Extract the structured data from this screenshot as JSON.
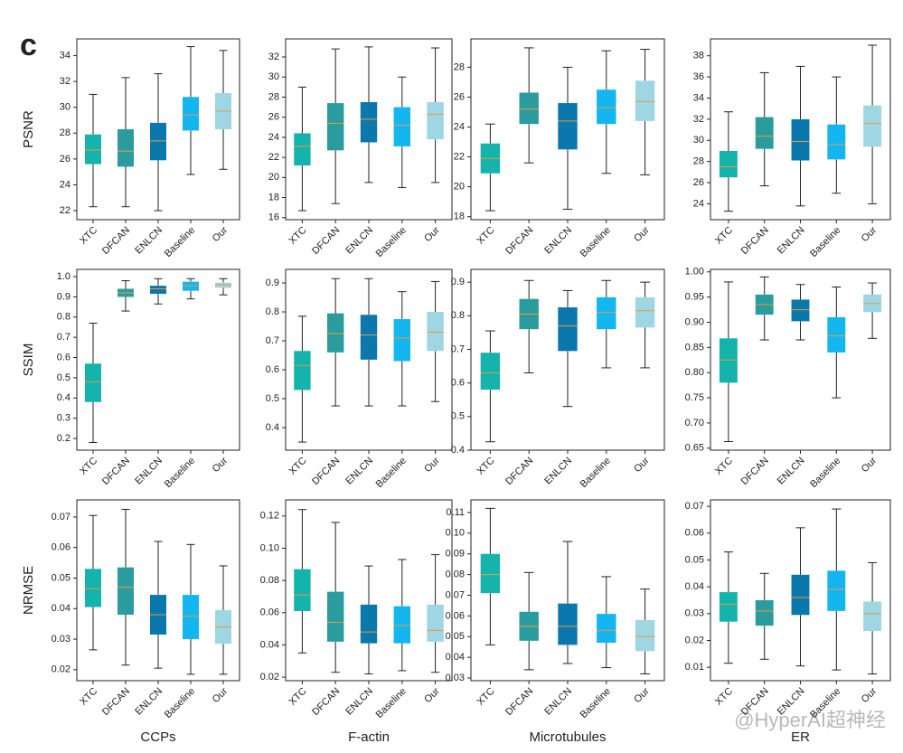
{
  "panel_label": "c",
  "watermark": "@HyperAI超神经",
  "chart_data": [
    {
      "type": "box",
      "ylabel": "PSNR",
      "categories": [
        "XTC",
        "DFCAN",
        "ENLCN",
        "Baseline",
        "Our"
      ],
      "colors": [
        "#14b3ab",
        "#2a9c9e",
        "#0a77ad",
        "#14b6f0",
        "#9fd6e4"
      ],
      "median_color": "#e89a3c",
      "min": [
        22.3,
        22.3,
        22.0,
        24.8,
        25.2
      ],
      "q1": [
        25.6,
        25.4,
        25.9,
        28.2,
        28.3
      ],
      "median": [
        26.7,
        26.6,
        27.4,
        29.4,
        29.7
      ],
      "q3": [
        27.9,
        28.3,
        28.8,
        30.8,
        31.1
      ],
      "max": [
        31.0,
        32.3,
        32.6,
        34.7,
        34.4
      ],
      "ylim": [
        21.3,
        35.3
      ],
      "yticks": [
        22,
        24,
        26,
        28,
        30,
        32,
        34
      ]
    },
    {
      "type": "box",
      "categories": [
        "XTC",
        "DFCAN",
        "ENLCN",
        "Baseline",
        "Our"
      ],
      "colors": [
        "#14b3ab",
        "#2a9c9e",
        "#0a77ad",
        "#14b6f0",
        "#9fd6e4"
      ],
      "median_color": "#e89a3c",
      "min": [
        16.7,
        17.4,
        19.5,
        19.0,
        19.5
      ],
      "q1": [
        21.2,
        22.7,
        23.5,
        23.1,
        23.8
      ],
      "median": [
        23.1,
        25.4,
        25.8,
        25.2,
        26.3
      ],
      "q3": [
        24.4,
        27.4,
        27.5,
        27.0,
        27.5
      ],
      "max": [
        29.0,
        32.8,
        33.0,
        30.0,
        32.9
      ],
      "ylim": [
        15.8,
        33.8
      ],
      "yticks": [
        16,
        18,
        20,
        22,
        24,
        26,
        28,
        30,
        32
      ]
    },
    {
      "type": "box",
      "categories": [
        "XTC",
        "DFCAN",
        "ENLCN",
        "Baseline",
        "Our"
      ],
      "colors": [
        "#14b3ab",
        "#2a9c9e",
        "#0a77ad",
        "#14b6f0",
        "#9fd6e4"
      ],
      "median_color": "#e89a3c",
      "min": [
        18.4,
        21.6,
        18.5,
        20.9,
        20.8
      ],
      "q1": [
        20.9,
        24.2,
        22.5,
        24.2,
        24.4
      ],
      "median": [
        21.9,
        25.2,
        24.4,
        25.3,
        25.7
      ],
      "q3": [
        22.9,
        26.3,
        25.6,
        26.5,
        27.1
      ],
      "max": [
        24.2,
        29.3,
        28.0,
        29.1,
        29.2
      ],
      "ylim": [
        17.8,
        29.9
      ],
      "yticks": [
        18,
        20,
        22,
        24,
        26,
        28
      ]
    },
    {
      "type": "box",
      "categories": [
        "XTC",
        "DFCAN",
        "ENLCN",
        "Baseline",
        "Our"
      ],
      "colors": [
        "#14b3ab",
        "#2a9c9e",
        "#0a77ad",
        "#14b6f0",
        "#9fd6e4"
      ],
      "median_color": "#e89a3c",
      "min": [
        23.3,
        25.7,
        23.8,
        25.0,
        24.0
      ],
      "q1": [
        26.5,
        29.2,
        28.1,
        28.2,
        29.4
      ],
      "median": [
        27.5,
        30.4,
        29.9,
        29.6,
        31.6
      ],
      "q3": [
        29.0,
        32.2,
        32.0,
        31.5,
        33.3
      ],
      "max": [
        32.7,
        36.4,
        37.0,
        36.0,
        39.0
      ],
      "ylim": [
        22.5,
        39.6
      ],
      "yticks": [
        24,
        26,
        28,
        30,
        32,
        34,
        36,
        38
      ]
    },
    {
      "type": "box",
      "ylabel": "SSIM",
      "categories": [
        "XTC",
        "DFCAN",
        "ENLCN",
        "Baseline",
        "Our"
      ],
      "colors": [
        "#14b3ab",
        "#2a9c9e",
        "#0a77ad",
        "#14b6f0",
        "#9fd6e4"
      ],
      "median_color": "#e89a3c",
      "min": [
        0.18,
        0.83,
        0.865,
        0.89,
        0.91
      ],
      "q1": [
        0.38,
        0.9,
        0.915,
        0.93,
        0.945
      ],
      "median": [
        0.48,
        0.92,
        0.94,
        0.955,
        0.96
      ],
      "q3": [
        0.57,
        0.94,
        0.955,
        0.975,
        0.97
      ],
      "max": [
        0.77,
        0.98,
        0.99,
        0.99,
        0.99
      ],
      "ylim": [
        0.142,
        1.036
      ],
      "yticks": [
        0.2,
        0.3,
        0.4,
        0.5,
        0.6,
        0.7,
        0.8,
        0.9,
        {
          "value": 1.0,
          "label": "1.0"
        }
      ]
    },
    {
      "type": "box",
      "categories": [
        "XTC",
        "DFCAN",
        "ENLCN",
        "Baseline",
        "Our"
      ],
      "colors": [
        "#14b3ab",
        "#2a9c9e",
        "#0a77ad",
        "#14b6f0",
        "#9fd6e4"
      ],
      "median_color": "#e89a3c",
      "min": [
        0.35,
        0.475,
        0.475,
        0.475,
        0.49
      ],
      "q1": [
        0.53,
        0.66,
        0.635,
        0.63,
        0.665
      ],
      "median": [
        0.615,
        0.725,
        0.72,
        0.71,
        0.73
      ],
      "q3": [
        0.665,
        0.795,
        0.79,
        0.775,
        0.8
      ],
      "max": [
        0.785,
        0.915,
        0.915,
        0.87,
        0.905
      ],
      "ylim": [
        0.322,
        0.947
      ],
      "yticks": [
        0.4,
        0.5,
        0.6,
        0.7,
        0.8,
        0.9
      ]
    },
    {
      "type": "box",
      "categories": [
        "XTC",
        "DFCAN",
        "ENLCN",
        "Baseline",
        "Our"
      ],
      "colors": [
        "#14b3ab",
        "#2a9c9e",
        "#0a77ad",
        "#14b6f0",
        "#9fd6e4"
      ],
      "median_color": "#e89a3c",
      "min": [
        0.425,
        0.63,
        0.53,
        0.645,
        0.645
      ],
      "q1": [
        0.58,
        0.76,
        0.695,
        0.76,
        0.765
      ],
      "median": [
        0.63,
        0.805,
        0.77,
        0.81,
        0.815
      ],
      "q3": [
        0.69,
        0.85,
        0.825,
        0.855,
        0.855
      ],
      "max": [
        0.755,
        0.905,
        0.875,
        0.905,
        0.9
      ],
      "ylim": [
        0.4,
        0.938
      ],
      "yticks": [
        0.4,
        0.5,
        0.6,
        0.7,
        0.8,
        0.9
      ]
    },
    {
      "type": "box",
      "categories": [
        "XTC",
        "DFCAN",
        "ENLCN",
        "Baseline",
        "Our"
      ],
      "colors": [
        "#14b3ab",
        "#2a9c9e",
        "#0a77ad",
        "#14b6f0",
        "#9fd6e4"
      ],
      "median_color": "#e89a3c",
      "min": [
        0.663,
        0.865,
        0.865,
        0.75,
        0.868
      ],
      "q1": [
        0.78,
        0.915,
        0.902,
        0.84,
        0.92
      ],
      "median": [
        0.825,
        0.935,
        0.925,
        0.873,
        0.937
      ],
      "q3": [
        0.868,
        0.955,
        0.945,
        0.91,
        0.955
      ],
      "max": [
        0.98,
        0.99,
        0.975,
        0.97,
        0.978
      ],
      "ylim": [
        0.646,
        1.005
      ],
      "yticks": [
        0.65,
        {
          "value": 0.7,
          "label": "0.70"
        },
        0.75,
        {
          "value": 0.8,
          "label": "0.80"
        },
        0.85,
        {
          "value": 0.9,
          "label": "0.90"
        },
        0.95,
        {
          "value": 1.0,
          "label": "1.00"
        }
      ]
    },
    {
      "type": "box",
      "ylabel": "NRMSE",
      "xlabel": "CCPs",
      "categories": [
        "XTC",
        "DFCAN",
        "ENLCN",
        "Baseline",
        "Our"
      ],
      "colors": [
        "#14b3ab",
        "#2a9c9e",
        "#0a77ad",
        "#14b6f0",
        "#9fd6e4"
      ],
      "median_color": "#e89a3c",
      "min": [
        0.0265,
        0.0215,
        0.0205,
        0.0185,
        0.0185
      ],
      "q1": [
        0.0405,
        0.038,
        0.0315,
        0.03,
        0.0285
      ],
      "median": [
        0.0465,
        0.047,
        0.038,
        0.0375,
        0.034
      ],
      "q3": [
        0.053,
        0.0535,
        0.0445,
        0.0445,
        0.0395
      ],
      "max": [
        0.0705,
        0.0725,
        0.062,
        0.061,
        0.054
      ],
      "ylim": [
        0.0164,
        0.0756
      ],
      "yticks": [
        0.02,
        0.03,
        0.04,
        0.05,
        0.06,
        0.07
      ]
    },
    {
      "type": "box",
      "xlabel": "F-actin",
      "categories": [
        "XTC",
        "DFCAN",
        "ENLCN",
        "Baseline",
        "Our"
      ],
      "colors": [
        "#14b3ab",
        "#2a9c9e",
        "#0a77ad",
        "#14b6f0",
        "#9fd6e4"
      ],
      "median_color": "#e89a3c",
      "min": [
        0.035,
        0.023,
        0.022,
        0.024,
        0.023
      ],
      "q1": [
        0.061,
        0.042,
        0.041,
        0.041,
        0.042
      ],
      "median": [
        0.071,
        0.054,
        0.048,
        0.052,
        0.049
      ],
      "q3": [
        0.087,
        0.073,
        0.065,
        0.064,
        0.065
      ],
      "max": [
        0.124,
        0.116,
        0.089,
        0.093,
        0.096
      ],
      "ylim": [
        0.0178,
        0.13
      ],
      "yticks": [
        0.02,
        0.04,
        0.06,
        0.08,
        {
          "value": 0.1,
          "label": "0.10"
        },
        0.12
      ]
    },
    {
      "type": "box",
      "xlabel": "Microtubules",
      "categories": [
        "XTC",
        "DFCAN",
        "ENLCN",
        "Baseline",
        "Our"
      ],
      "colors": [
        "#14b3ab",
        "#2a9c9e",
        "#0a77ad",
        "#14b6f0",
        "#9fd6e4"
      ],
      "median_color": "#e89a3c",
      "min": [
        0.046,
        0.034,
        0.037,
        0.035,
        0.032
      ],
      "q1": [
        0.071,
        0.048,
        0.046,
        0.047,
        0.043
      ],
      "median": [
        0.08,
        0.055,
        0.055,
        0.053,
        0.05
      ],
      "q3": [
        0.09,
        0.062,
        0.066,
        0.061,
        0.058
      ],
      "max": [
        0.112,
        0.081,
        0.096,
        0.079,
        0.073
      ],
      "ylim": [
        0.0287,
        0.1161
      ],
      "yticks": [
        0.03,
        0.04,
        0.05,
        0.06,
        0.07,
        0.08,
        0.09,
        {
          "value": 0.1,
          "label": "0.10"
        },
        0.11
      ]
    },
    {
      "type": "box",
      "xlabel": "ER",
      "categories": [
        "XTC",
        "DFCAN",
        "ENLCN",
        "Baseline",
        "Our"
      ],
      "colors": [
        "#14b3ab",
        "#2a9c9e",
        "#0a77ad",
        "#14b6f0",
        "#9fd6e4"
      ],
      "median_color": "#e89a3c",
      "min": [
        0.0115,
        0.013,
        0.0105,
        0.009,
        0.0075
      ],
      "q1": [
        0.027,
        0.0255,
        0.0295,
        0.031,
        0.0235
      ],
      "median": [
        0.0335,
        0.031,
        0.036,
        0.039,
        0.03
      ],
      "q3": [
        0.038,
        0.035,
        0.0445,
        0.046,
        0.0345
      ],
      "max": [
        0.053,
        0.045,
        0.062,
        0.069,
        0.049
      ],
      "ylim": [
        0.005,
        0.0724
      ],
      "yticks": [
        0.01,
        0.02,
        0.03,
        0.04,
        0.05,
        0.06,
        0.07
      ]
    }
  ]
}
